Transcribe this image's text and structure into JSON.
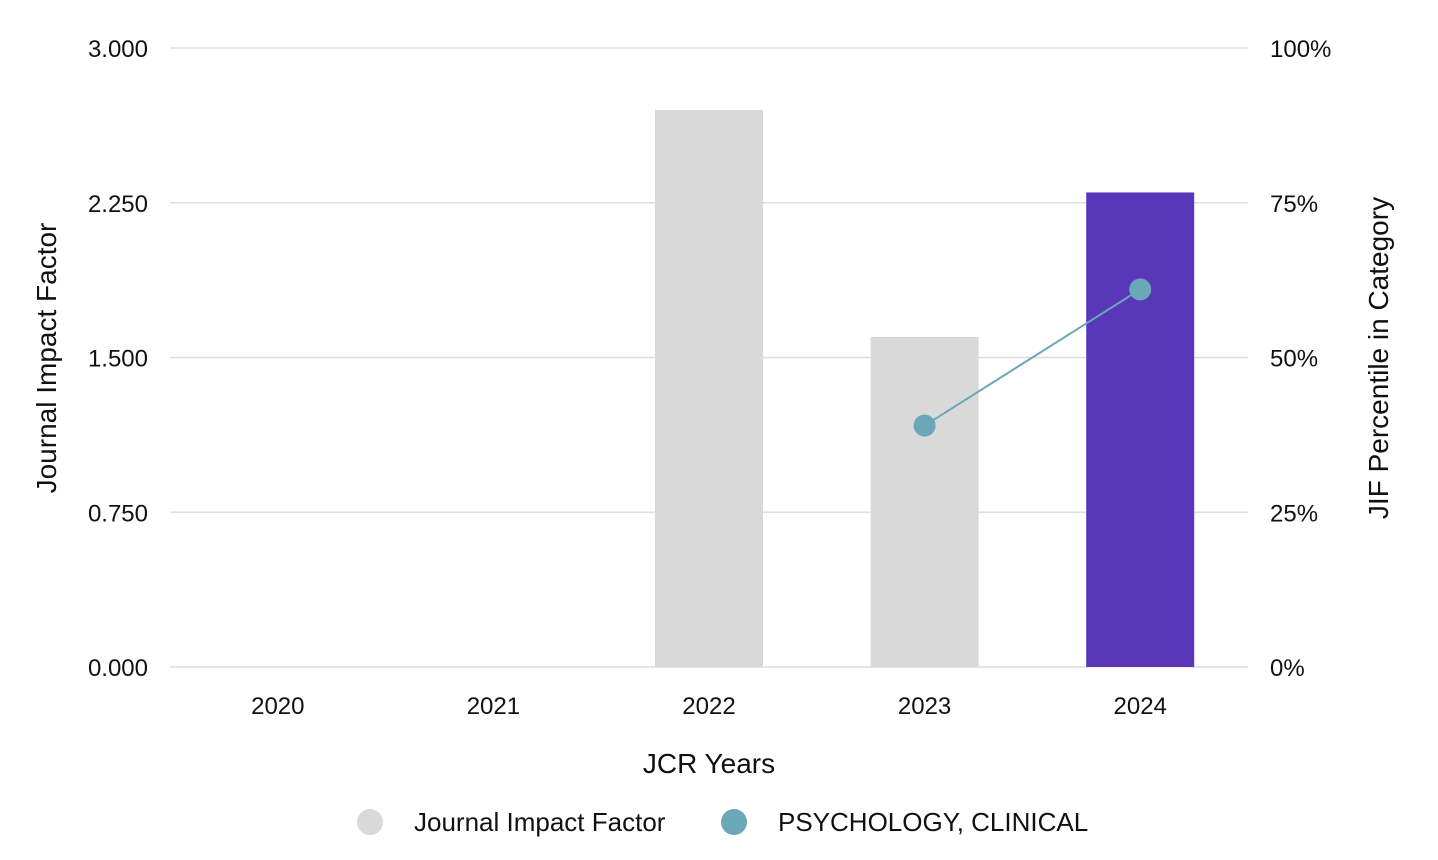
{
  "chart_data": {
    "type": "bar",
    "categories": [
      "2020",
      "2021",
      "2022",
      "2023",
      "2024"
    ],
    "xlabel": "JCR Years",
    "ylabel_left": "Journal Impact Factor",
    "ylabel_right": "JIF Percentile in Category",
    "ylim_left": [
      0,
      3
    ],
    "ylim_right": [
      0,
      100
    ],
    "left_ticks": [
      "0.000",
      "0.750",
      "1.500",
      "2.250",
      "3.000"
    ],
    "left_tick_values": [
      0,
      0.75,
      1.5,
      2.25,
      3.0
    ],
    "right_ticks": [
      "0%",
      "25%",
      "50%",
      "75%",
      "100%"
    ],
    "right_tick_values": [
      0,
      25,
      50,
      75,
      100
    ],
    "grid": true,
    "legend_position": "bottom",
    "series": [
      {
        "name": "Journal Impact Factor",
        "kind": "bar",
        "axis": "left",
        "values": [
          null,
          null,
          2.7,
          1.6,
          2.3
        ],
        "color": "#d9d9d9",
        "highlight_color": "#5837b9",
        "highlight_category": "2024"
      },
      {
        "name": "PSYCHOLOGY, CLINICAL",
        "kind": "line",
        "axis": "right",
        "values": [
          null,
          null,
          null,
          39,
          61
        ],
        "color": "#6aa8b8"
      }
    ]
  }
}
